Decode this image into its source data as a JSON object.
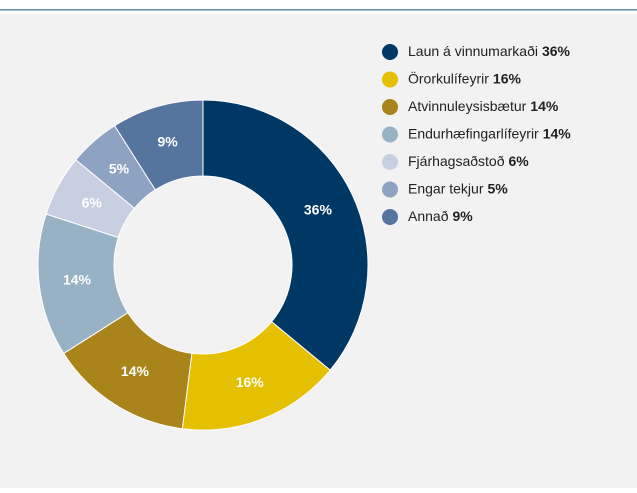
{
  "chart_data": {
    "type": "pie",
    "categories": [
      "Laun á vinnumarkaði",
      "Örorkulífeyrir",
      "Atvinnuleysisbætur",
      "Endurhæfingarlífeyrir",
      "Fjárhagsaðstoð",
      "Engar tekjur",
      "Annað"
    ],
    "values": [
      36,
      16,
      14,
      14,
      6,
      5,
      9
    ],
    "value_labels": [
      "36%",
      "16%",
      "14%",
      "14%",
      "6%",
      "5%",
      "9%"
    ],
    "colors": [
      "#003865",
      "#e4c000",
      "#a8841a",
      "#97b2c4",
      "#c8cfe0",
      "#8ea3c2",
      "#56759e"
    ],
    "legend": "right"
  }
}
